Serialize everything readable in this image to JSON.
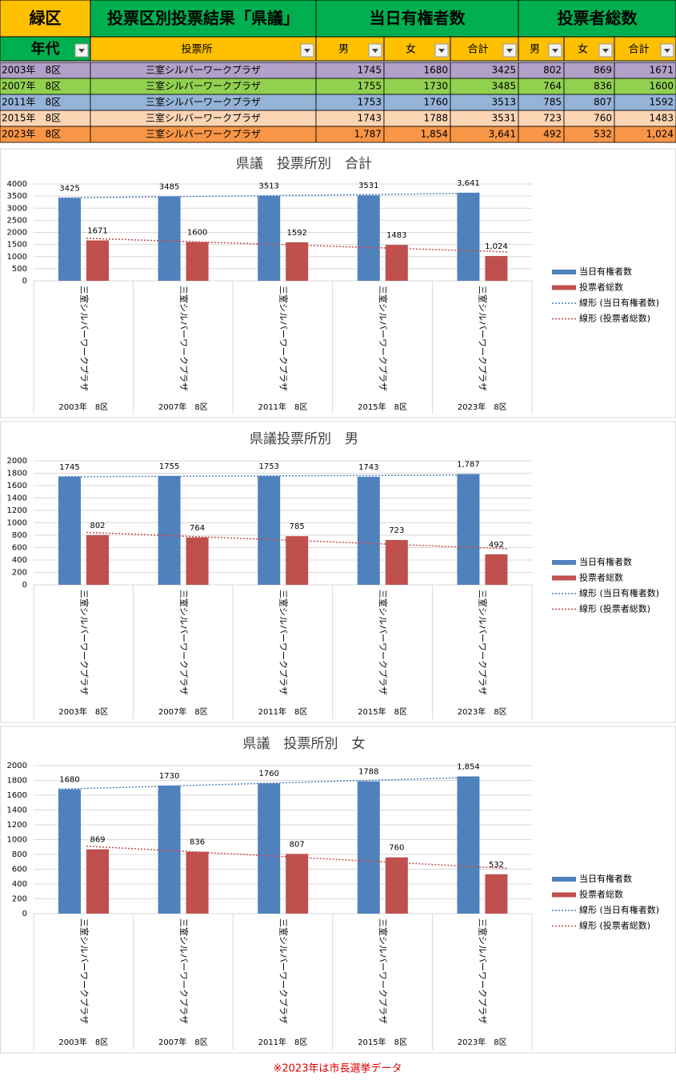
{
  "table": {
    "header1": [
      "緑区",
      "投票区別投票結果「県議」",
      "当日有権者数",
      "投票者総数"
    ],
    "header2": [
      "年代",
      "投票所",
      "男",
      "女",
      "合計",
      "男",
      "女",
      "合計"
    ],
    "rows": [
      [
        "2003年　8区",
        "三室シルバーワークプラザ",
        1745,
        1680,
        3425,
        802,
        869,
        1671
      ],
      [
        "2007年　8区",
        "三室シルバーワークプラザ",
        1755,
        1730,
        3485,
        764,
        836,
        1600
      ],
      [
        "2011年　8区",
        "三室シルバーワークプラザ",
        1753,
        1760,
        3513,
        785,
        807,
        1592
      ],
      [
        "2015年　8区",
        "三室シルバーワークプラザ",
        1743,
        1788,
        3531,
        723,
        760,
        1483
      ],
      [
        "2023年　8区",
        "三室シルバーワークプラザ",
        "1,787",
        "1,854",
        "3,641",
        492,
        532,
        "1,024"
      ]
    ],
    "row_colors": [
      "#b1a0c7",
      "#92d050",
      "#95b3d7",
      "#fcd5b4",
      "#f79646"
    ]
  },
  "chart_data": [
    {
      "type": "bar",
      "title": "県議　投票所別　合計",
      "categories": [
        "2003年　8区",
        "2007年　8区",
        "2011年　8区",
        "2015年　8区",
        "2023年　8区"
      ],
      "inner_categories": [
        "三室シルバーワークプラザ",
        "三室シルバーワークプラザ",
        "三室シルバーワークプラザ",
        "三室シルバーワークプラザ",
        "三室シルバーワークプラザ"
      ],
      "series": [
        {
          "name": "当日有権者数",
          "color": "#4f81bd",
          "values": [
            3425,
            3485,
            3513,
            3531,
            3641
          ],
          "value_labels": [
            "3425",
            "3485",
            "3513",
            "3531",
            "3,641"
          ]
        },
        {
          "name": "投票者総数",
          "color": "#c0504d",
          "values": [
            1671,
            1600,
            1592,
            1483,
            1024
          ],
          "value_labels": [
            "1671",
            "1600",
            "1592",
            "1483",
            "1,024"
          ]
        }
      ],
      "trendlines": [
        {
          "name": "線形 (当日有権者数)",
          "color": "#4f81bd"
        },
        {
          "name": "線形 (投票者総数)",
          "color": "#c0504d"
        }
      ],
      "ylim": [
        0,
        4000
      ],
      "yticks": [
        0,
        500,
        1000,
        1500,
        2000,
        2500,
        3000,
        3500,
        4000
      ],
      "grid": true
    },
    {
      "type": "bar",
      "title": "県議投票所別　男",
      "categories": [
        "2003年　8区",
        "2007年　8区",
        "2011年　8区",
        "2015年　8区",
        "2023年　8区"
      ],
      "inner_categories": [
        "三室シルバーワークプラザ",
        "三室シルバーワークプラザ",
        "三室シルバーワークプラザ",
        "三室シルバーワークプラザ",
        "三室シルバーワークプラザ"
      ],
      "series": [
        {
          "name": "当日有権者数",
          "color": "#4f81bd",
          "values": [
            1745,
            1755,
            1753,
            1743,
            1787
          ],
          "value_labels": [
            "1745",
            "1755",
            "1753",
            "1743",
            "1,787"
          ]
        },
        {
          "name": "投票者総数",
          "color": "#c0504d",
          "values": [
            802,
            764,
            785,
            723,
            492
          ]
        }
      ],
      "trendlines": [
        {
          "name": "線形 (当日有権者数)",
          "color": "#4f81bd"
        },
        {
          "name": "線形 (投票者総数)",
          "color": "#c0504d"
        }
      ],
      "ylim": [
        0,
        2000
      ],
      "yticks": [
        0,
        200,
        400,
        600,
        800,
        1000,
        1200,
        1400,
        1600,
        1800,
        2000
      ],
      "grid": true
    },
    {
      "type": "bar",
      "title": "県議　投票所別　女",
      "categories": [
        "2003年　8区",
        "2007年　8区",
        "2011年　8区",
        "2015年　8区",
        "2023年　8区"
      ],
      "inner_categories": [
        "三室シルバーワークプラザ",
        "三室シルバーワークプラザ",
        "三室シルバーワークプラザ",
        "三室シルバーワークプラザ",
        "三室シルバーワークプラザ"
      ],
      "series": [
        {
          "name": "当日有権者数",
          "color": "#4f81bd",
          "values": [
            1680,
            1730,
            1760,
            1788,
            1854
          ],
          "value_labels": [
            "1680",
            "1730",
            "1760",
            "1788",
            "1,854"
          ]
        },
        {
          "name": "投票者総数",
          "color": "#c0504d",
          "values": [
            869,
            836,
            807,
            760,
            532
          ]
        }
      ],
      "trendlines": [
        {
          "name": "線形 (当日有権者数)",
          "color": "#4f81bd"
        },
        {
          "name": "線形 (投票者総数)",
          "color": "#c0504d"
        }
      ],
      "ylim": [
        0,
        2000
      ],
      "yticks": [
        0,
        200,
        400,
        600,
        800,
        1000,
        1200,
        1400,
        1600,
        1800,
        2000
      ],
      "grid": true
    }
  ],
  "footnote": "※2023年は市長選挙データ"
}
